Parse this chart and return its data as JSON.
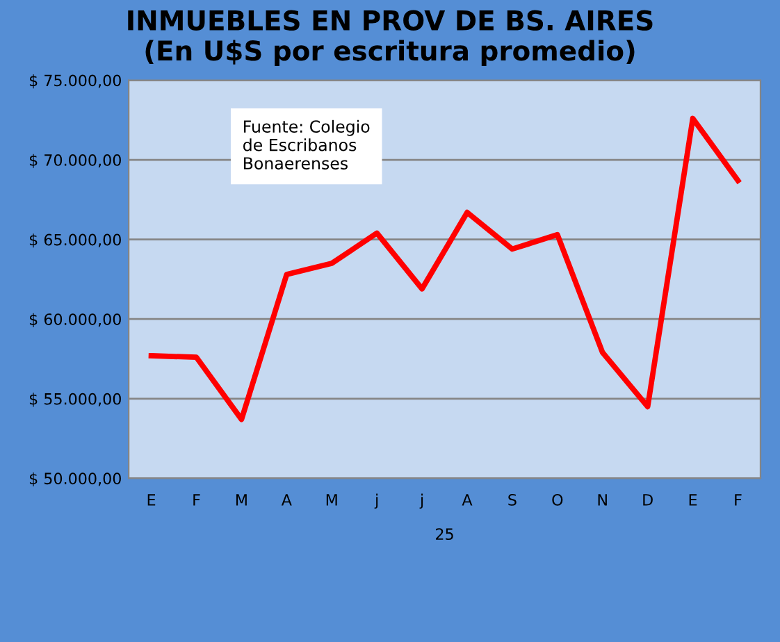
{
  "chart_data": {
    "type": "line",
    "title": "INMUEBLES EN PROV DE BS. AIRES\n(En U$S por escritura promedio)",
    "xlabel": "25",
    "categories": [
      "E",
      "F",
      "M",
      "A",
      "M",
      "j",
      "j",
      "A",
      "S",
      "O",
      "N",
      "D",
      "E",
      "F"
    ],
    "series": [
      {
        "color": "#ff0000",
        "values": [
          57700,
          57600,
          53700,
          62800,
          63500,
          65400,
          61900,
          66700,
          64400,
          65300,
          57900,
          54500,
          72600,
          68700
        ]
      }
    ],
    "ylim": [
      50000,
      75000
    ],
    "yticks": [
      {
        "value": 50000,
        "label": "$ 50.000,00"
      },
      {
        "value": 55000,
        "label": "$ 55.000,00"
      },
      {
        "value": 60000,
        "label": "$ 60.000,00"
      },
      {
        "value": 65000,
        "label": "$ 65.000,00"
      },
      {
        "value": 70000,
        "label": "$ 70.000,00"
      },
      {
        "value": 75000,
        "label": "$ 75.000,00"
      }
    ],
    "grid": "y",
    "legend": false,
    "marker": "none",
    "line_style": "solid",
    "annotations": [
      "Fuente: Colegio\nde Escribanos\nBonaerenses"
    ]
  }
}
